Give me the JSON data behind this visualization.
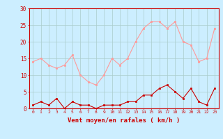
{
  "hours": [
    0,
    1,
    2,
    3,
    4,
    5,
    6,
    7,
    8,
    9,
    10,
    11,
    12,
    13,
    14,
    15,
    16,
    17,
    18,
    19,
    20,
    21,
    22,
    23
  ],
  "rafales": [
    14,
    15,
    13,
    12,
    13,
    16,
    10,
    8,
    7,
    10,
    15,
    13,
    15,
    20,
    24,
    26,
    26,
    24,
    26,
    20,
    19,
    14,
    15,
    24
  ],
  "vent_moyen": [
    1,
    2,
    1,
    3,
    0,
    2,
    1,
    1,
    0,
    1,
    1,
    1,
    2,
    2,
    4,
    4,
    6,
    7,
    5,
    3,
    6,
    2,
    1,
    6
  ],
  "bg_color": "#cceeff",
  "grid_color": "#aacccc",
  "line_color_rafales": "#ff9999",
  "line_color_vent": "#cc0000",
  "xlabel": "Vent moyen/en rafales ( km/h )",
  "yticks": [
    0,
    5,
    10,
    15,
    20,
    25,
    30
  ],
  "ylim": [
    0,
    30
  ],
  "xlim": [
    -0.5,
    23.5
  ],
  "xlabel_color": "#cc0000"
}
